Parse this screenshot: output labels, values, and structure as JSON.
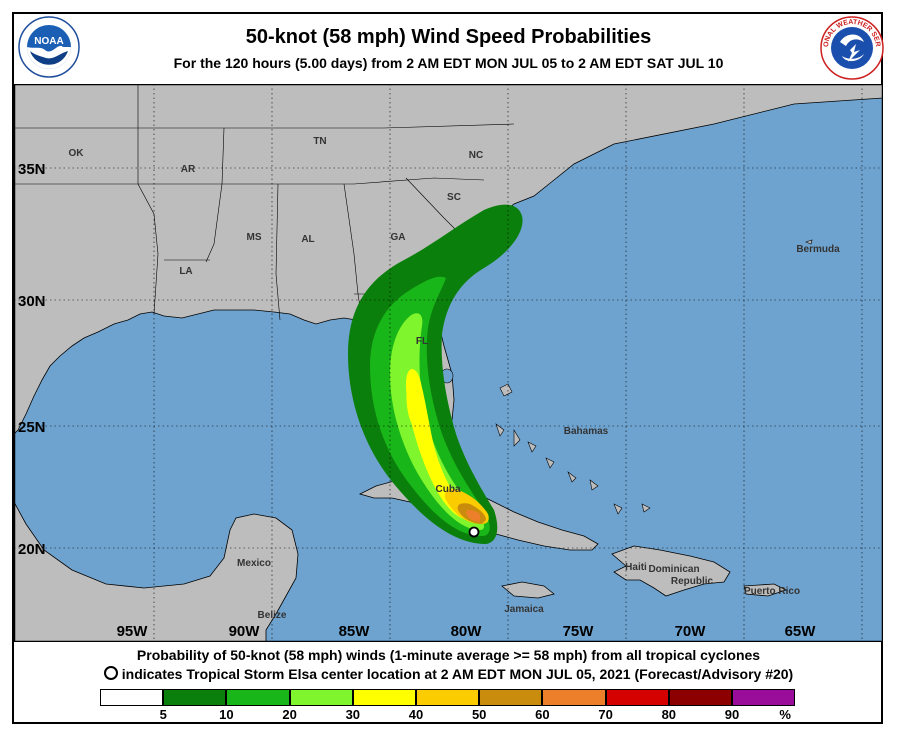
{
  "header": {
    "title": "50-knot (58 mph) Wind Speed Probabilities",
    "subtitle": "For the 120 hours (5.00 days) from 2 AM EDT MON JUL 05 to 2 AM EDT SAT JUL 10"
  },
  "logos": {
    "left": {
      "icon": "noaa-logo-icon",
      "text": "NOAA"
    },
    "right": {
      "icon": "nws-logo-icon",
      "text": "NATIONAL WEATHER SERVICE"
    }
  },
  "map": {
    "lat_labels": [
      "35N",
      "30N",
      "25N",
      "20N"
    ],
    "lon_labels": [
      "95W",
      "90W",
      "85W",
      "80W",
      "75W",
      "70W",
      "65W"
    ],
    "place_labels": [
      "OK",
      "AR",
      "TN",
      "NC",
      "SC",
      "GA",
      "MS",
      "AL",
      "LA",
      "FL",
      "Bermuda",
      "Bahamas",
      "Cuba",
      "Mexico",
      "Belize",
      "Haiti",
      "Dominican",
      "Republic",
      "Jamaica",
      "Puerto Rico"
    ],
    "colors": {
      "ocean": "#6fa3cf",
      "land": "#bdbdbd",
      "border": "#000000"
    }
  },
  "storm": {
    "name": "Tropical Storm Elsa",
    "center_marker": "open-circle"
  },
  "caption": {
    "line1": "Probability of 50-knot (58 mph) winds (1-minute average >= 58 mph) from all tropical cyclones",
    "line2": "indicates Tropical Storm Elsa center location at 2 AM EDT MON JUL 05, 2021 (Forecast/Advisory #20)"
  },
  "legend": {
    "bins": [
      {
        "color": "#ffffff"
      },
      {
        "color": "#0b7f0b"
      },
      {
        "color": "#19b619"
      },
      {
        "color": "#7ef52c"
      },
      {
        "color": "#ffff00"
      },
      {
        "color": "#fbcd00"
      },
      {
        "color": "#c98c0c"
      },
      {
        "color": "#ee7f2a"
      },
      {
        "color": "#d50000"
      },
      {
        "color": "#8c0000"
      },
      {
        "color": "#9a0d9a"
      }
    ],
    "tick_labels": [
      "5",
      "10",
      "20",
      "30",
      "40",
      "50",
      "60",
      "70",
      "80",
      "90",
      "%"
    ]
  }
}
